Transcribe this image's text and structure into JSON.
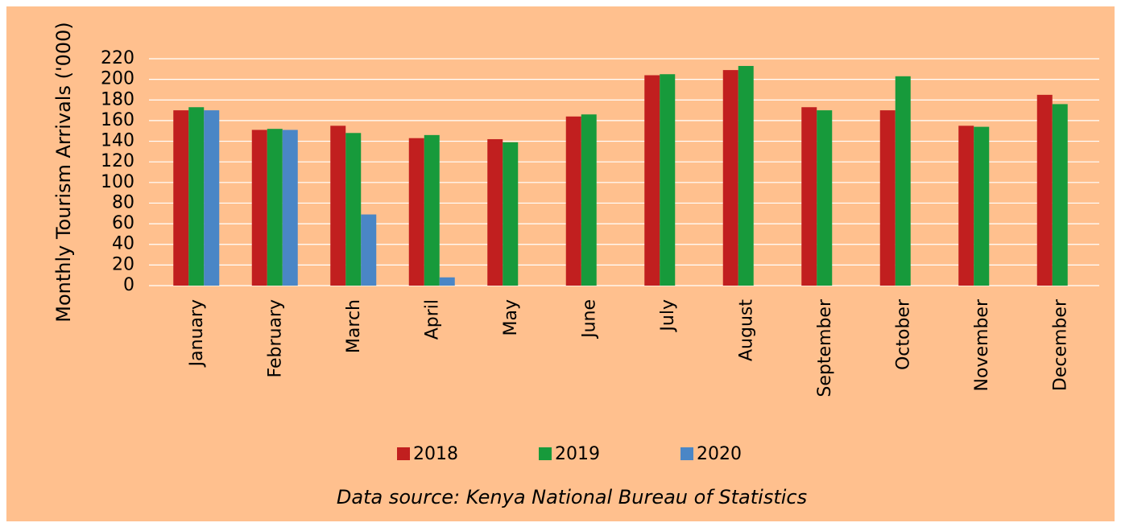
{
  "chart_data": {
    "type": "bar",
    "y_label": "Monthly Tourism Arrivals ('000)",
    "source": "Data source: Kenya National Bureau of Statistics",
    "categories": [
      "January",
      "February",
      "March",
      "April",
      "May",
      "June",
      "July",
      "August",
      "September",
      "October",
      "November",
      "December"
    ],
    "series": [
      {
        "name": "2018",
        "color": "#c11f1f",
        "values": [
          170,
          151,
          155,
          143,
          142,
          164,
          204,
          209,
          173,
          170,
          155,
          185
        ]
      },
      {
        "name": "2019",
        "color": "#179a3b",
        "values": [
          173,
          152,
          148,
          146,
          139,
          166,
          205,
          213,
          170,
          203,
          154,
          176
        ]
      },
      {
        "name": "2020",
        "color": "#4a86c6",
        "values": [
          170,
          151,
          69,
          8,
          null,
          null,
          null,
          null,
          null,
          null,
          null,
          null
        ]
      }
    ],
    "ylim": [
      0,
      220
    ],
    "yticks": [
      0,
      20,
      40,
      60,
      80,
      100,
      120,
      140,
      160,
      180,
      200,
      220
    ],
    "grid": true,
    "legend": "bottom"
  }
}
